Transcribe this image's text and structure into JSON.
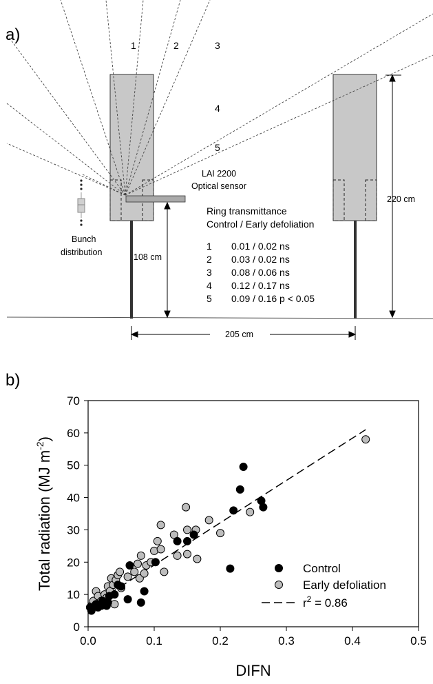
{
  "figure_a": {
    "panel_label": "a)",
    "ring_numbers": [
      "1",
      "2",
      "3",
      "4",
      "5"
    ],
    "sensor_label_line1": "LAI 2200",
    "sensor_label_line2": "Optical sensor",
    "bunch_label_line1": "Bunch",
    "bunch_label_line2": "distribution",
    "sensor_height": "108 cm",
    "canopy_height": "220 cm",
    "row_spacing": "205 cm",
    "table_title_line1": "Ring transmittance",
    "table_title_line2": "Control / Early defoliation",
    "table_rows": [
      {
        "ring": "1",
        "value": "0.01 / 0.02 ns"
      },
      {
        "ring": "2",
        "value": "0.03 / 0.02 ns"
      },
      {
        "ring": "3",
        "value": "0.08 / 0.06 ns"
      },
      {
        "ring": "4",
        "value": "0.12 / 0.17 ns"
      },
      {
        "ring": "5",
        "value": "0.09 / 0.16 p < 0.05"
      }
    ]
  },
  "chart_data": {
    "type": "scatter",
    "panel_label": "b)",
    "xlabel": "DIFN",
    "ylabel": "Total radiation (MJ m",
    "ylabel_sup": "-2",
    "ylabel_close": ")",
    "xlim": [
      0.0,
      0.5
    ],
    "ylim": [
      0,
      70
    ],
    "xticks": [
      "0.0",
      "0.1",
      "0.2",
      "0.3",
      "0.4",
      "0.5"
    ],
    "yticks": [
      "0",
      "10",
      "20",
      "30",
      "40",
      "50",
      "60",
      "70"
    ],
    "legend_position": "bottom-right",
    "series": [
      {
        "name": "Control",
        "color": "#000000",
        "points": [
          [
            0.003,
            6.0
          ],
          [
            0.005,
            5.0
          ],
          [
            0.01,
            6.5
          ],
          [
            0.012,
            7.0
          ],
          [
            0.015,
            6.0
          ],
          [
            0.02,
            6.5
          ],
          [
            0.022,
            8.0
          ],
          [
            0.025,
            7.0
          ],
          [
            0.028,
            6.5
          ],
          [
            0.03,
            7.5
          ],
          [
            0.032,
            9.5
          ],
          [
            0.04,
            10.0
          ],
          [
            0.045,
            13.0
          ],
          [
            0.05,
            12.5
          ],
          [
            0.06,
            8.5
          ],
          [
            0.063,
            19.0
          ],
          [
            0.08,
            7.5
          ],
          [
            0.085,
            11.0
          ],
          [
            0.102,
            20.0
          ],
          [
            0.135,
            26.5
          ],
          [
            0.15,
            26.5
          ],
          [
            0.16,
            28.5
          ],
          [
            0.215,
            18.0
          ],
          [
            0.22,
            36.0
          ],
          [
            0.23,
            42.5
          ],
          [
            0.235,
            49.5
          ],
          [
            0.262,
            39.0
          ],
          [
            0.265,
            37.0
          ]
        ]
      },
      {
        "name": "Early defoliation",
        "color": "#bdbdbd",
        "points": [
          [
            0.005,
            6.5
          ],
          [
            0.008,
            8.0
          ],
          [
            0.012,
            11.0
          ],
          [
            0.015,
            9.5
          ],
          [
            0.02,
            8.0
          ],
          [
            0.025,
            10.0
          ],
          [
            0.028,
            9.0
          ],
          [
            0.03,
            12.5
          ],
          [
            0.033,
            11.0
          ],
          [
            0.035,
            15.0
          ],
          [
            0.038,
            13.0
          ],
          [
            0.04,
            7.0
          ],
          [
            0.042,
            14.5
          ],
          [
            0.045,
            16.0
          ],
          [
            0.048,
            17.0
          ],
          [
            0.05,
            12.0
          ],
          [
            0.06,
            15.5
          ],
          [
            0.07,
            17.0
          ],
          [
            0.075,
            19.5
          ],
          [
            0.078,
            15.0
          ],
          [
            0.08,
            22.0
          ],
          [
            0.085,
            16.5
          ],
          [
            0.088,
            19.0
          ],
          [
            0.095,
            20.0
          ],
          [
            0.1,
            23.5
          ],
          [
            0.105,
            26.5
          ],
          [
            0.11,
            31.5
          ],
          [
            0.11,
            24.0
          ],
          [
            0.115,
            17.0
          ],
          [
            0.13,
            28.5
          ],
          [
            0.135,
            22.0
          ],
          [
            0.148,
            37.0
          ],
          [
            0.15,
            22.5
          ],
          [
            0.15,
            30.0
          ],
          [
            0.163,
            30.0
          ],
          [
            0.165,
            21.0
          ],
          [
            0.183,
            33.0
          ],
          [
            0.2,
            29.0
          ],
          [
            0.245,
            35.5
          ],
          [
            0.42,
            58.0
          ]
        ]
      }
    ],
    "fit_line": {
      "name": "r",
      "name_sup": "2",
      "name_rest": " = 0.86",
      "style": "dashed",
      "from": [
        0.0,
        6.0
      ],
      "to": [
        0.42,
        61.0
      ]
    }
  }
}
